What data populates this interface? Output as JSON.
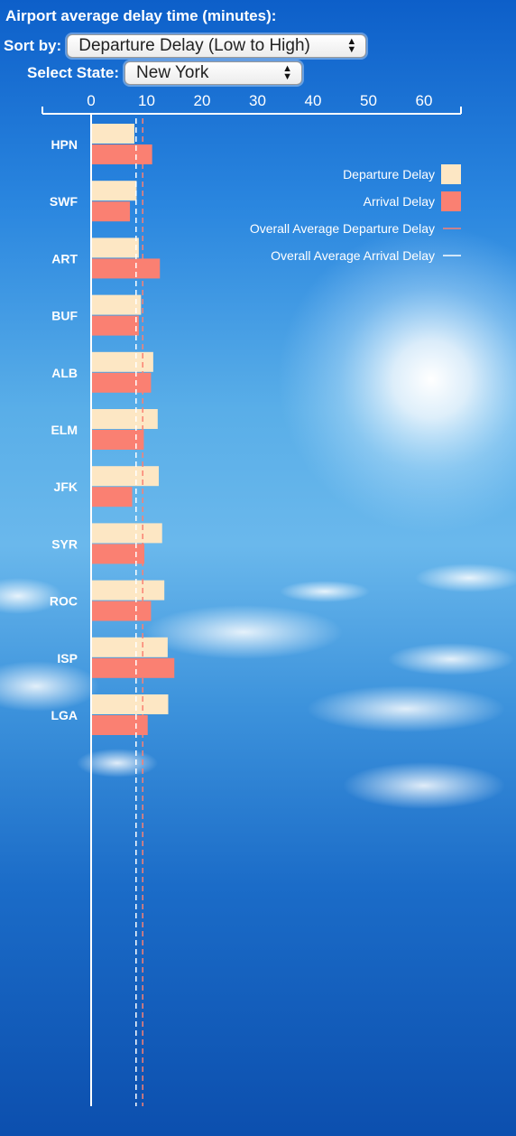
{
  "controls": {
    "title": "Airport average delay time (minutes):",
    "sort_label": "Sort by:",
    "sort_value": "Departure Delay (Low to High)",
    "state_label": "Select State:",
    "state_value": "New York"
  },
  "colors": {
    "departure": "#fde7c4",
    "arrival": "#fa8072",
    "avg_departure_line": "#fa8072",
    "avg_arrival_line": "#ffffff"
  },
  "chart_data": {
    "type": "bar",
    "orientation": "horizontal",
    "title": "Airport average delay time (minutes):",
    "xlabel": "",
    "ylabel": "",
    "xlim": [
      0,
      65
    ],
    "xticks": [
      0,
      10,
      20,
      30,
      40,
      50,
      60
    ],
    "categories": [
      "HPN",
      "SWF",
      "ART",
      "BUF",
      "ALB",
      "ELM",
      "JFK",
      "SYR",
      "ROC",
      "ISP",
      "LGA"
    ],
    "series": [
      {
        "name": "Departure Delay",
        "values": [
          7.8,
          8.2,
          8.6,
          9.0,
          11.2,
          12.0,
          12.2,
          12.8,
          13.2,
          13.8,
          13.9
        ]
      },
      {
        "name": "Arrival Delay",
        "values": [
          11.0,
          7.0,
          12.4,
          8.6,
          10.8,
          9.5,
          7.4,
          9.6,
          10.8,
          15.0,
          10.2
        ]
      }
    ],
    "reference_lines": [
      {
        "name": "Overall Average Departure Delay",
        "value": 9.3
      },
      {
        "name": "Overall Average Arrival Delay",
        "value": 8.1
      }
    ],
    "legend": [
      "Departure Delay",
      "Arrival Delay",
      "Overall Average Departure Delay",
      "Overall Average Arrival Delay"
    ],
    "legend_position": "top-right"
  }
}
